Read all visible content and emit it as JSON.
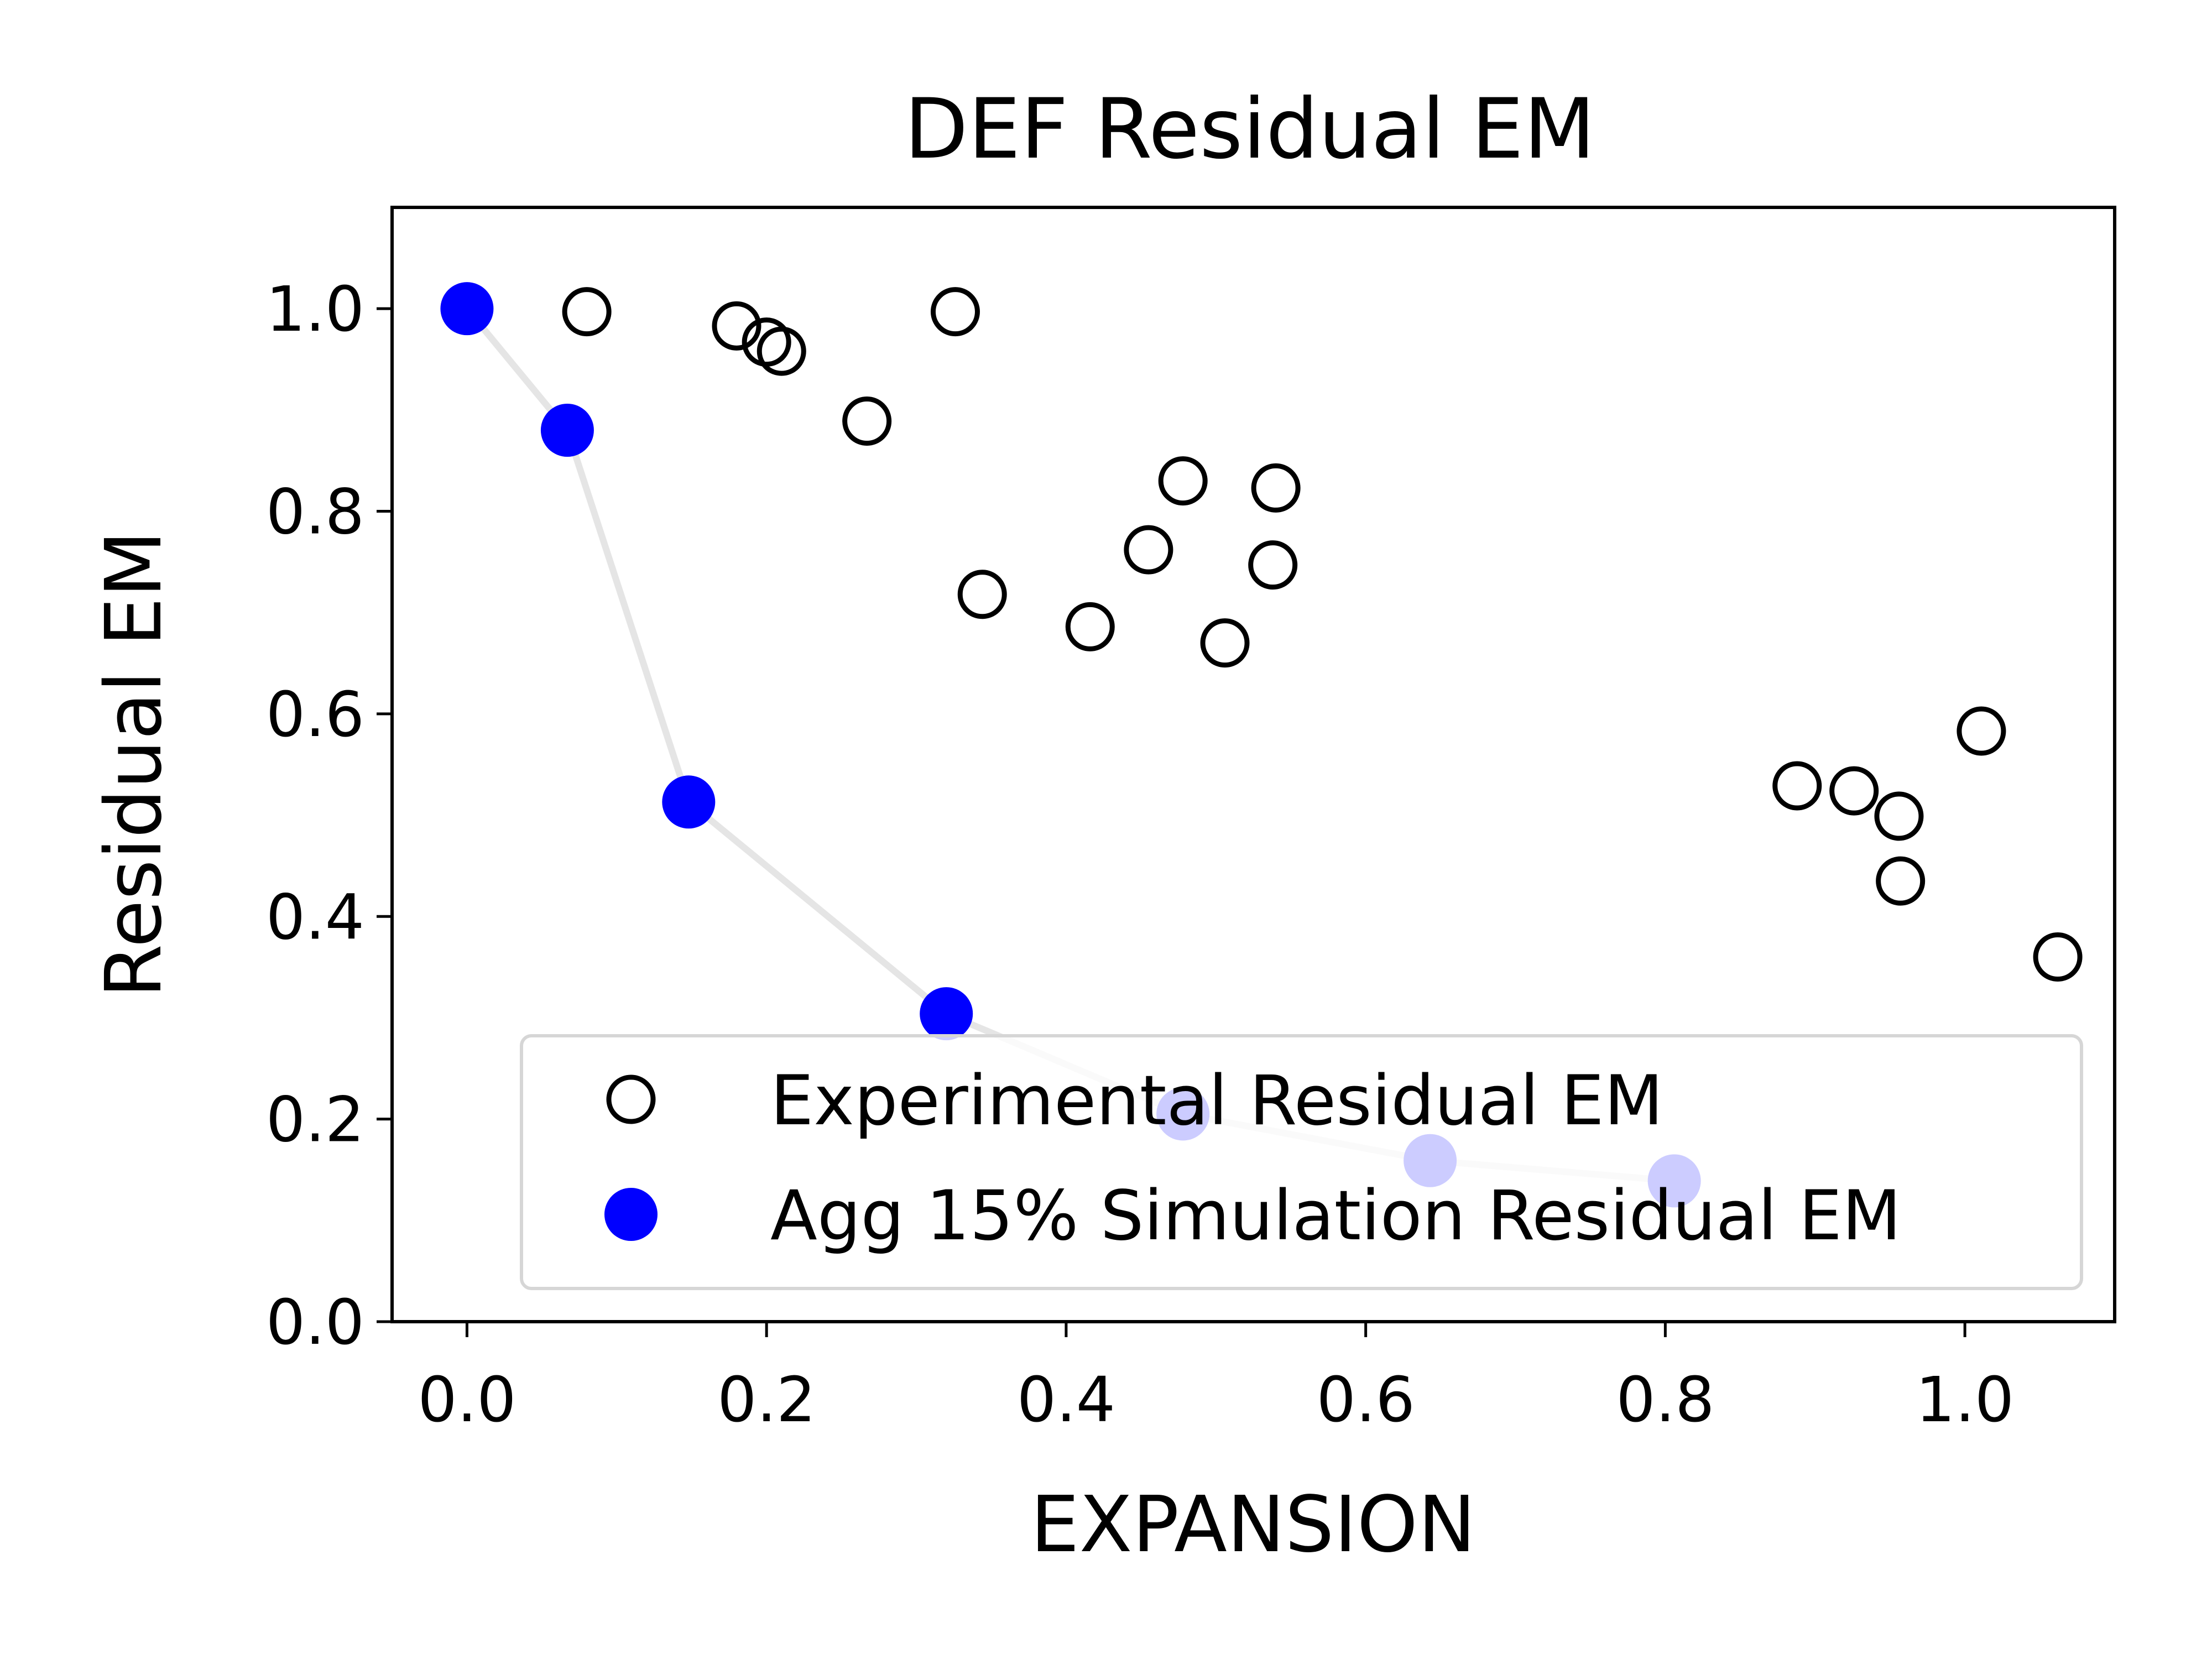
{
  "chart_data": {
    "type": "scatter",
    "title": "DEF Residual EM",
    "xlabel": "EXPANSION",
    "ylabel": "Residual EM",
    "xlim": [
      -0.05,
      1.1
    ],
    "ylim": [
      0.0,
      1.1
    ],
    "xticks": [
      0.0,
      0.2,
      0.4,
      0.6,
      0.8,
      1.0
    ],
    "xtick_labels": [
      "0.0",
      "0.2",
      "0.4",
      "0.6",
      "0.8",
      "1.0"
    ],
    "yticks": [
      0.0,
      0.2,
      0.4,
      0.6,
      0.8,
      1.0
    ],
    "ytick_labels": [
      "0.0",
      "0.2",
      "0.4",
      "0.6",
      "0.8",
      "1.0"
    ],
    "grid": false,
    "legend_position": "bottom-right",
    "series": [
      {
        "name": "Experimental Residual EM",
        "marker": "open-circle",
        "color": "#000000",
        "points": [
          [
            0.08,
            0.997
          ],
          [
            0.18,
            0.983
          ],
          [
            0.2,
            0.967
          ],
          [
            0.21,
            0.958
          ],
          [
            0.326,
            0.997
          ],
          [
            0.267,
            0.889
          ],
          [
            0.344,
            0.718
          ],
          [
            0.416,
            0.686
          ],
          [
            0.455,
            0.762
          ],
          [
            0.478,
            0.83
          ],
          [
            0.506,
            0.67
          ],
          [
            0.54,
            0.823
          ],
          [
            0.538,
            0.747
          ],
          [
            0.888,
            0.529
          ],
          [
            0.926,
            0.524
          ],
          [
            0.956,
            0.499
          ],
          [
            0.957,
            0.435
          ],
          [
            1.011,
            0.583
          ],
          [
            1.062,
            0.36
          ]
        ]
      },
      {
        "name": "Agg 15% Simulation Residual EM",
        "marker": "filled-circle",
        "color": "#0000ff",
        "line_color": "#e5e5e5",
        "points": [
          [
            0.0,
            1.0
          ],
          [
            0.067,
            0.88
          ],
          [
            0.148,
            0.513
          ],
          [
            0.32,
            0.304
          ],
          [
            0.478,
            0.205
          ],
          [
            0.643,
            0.159
          ],
          [
            0.806,
            0.139
          ]
        ]
      }
    ]
  }
}
